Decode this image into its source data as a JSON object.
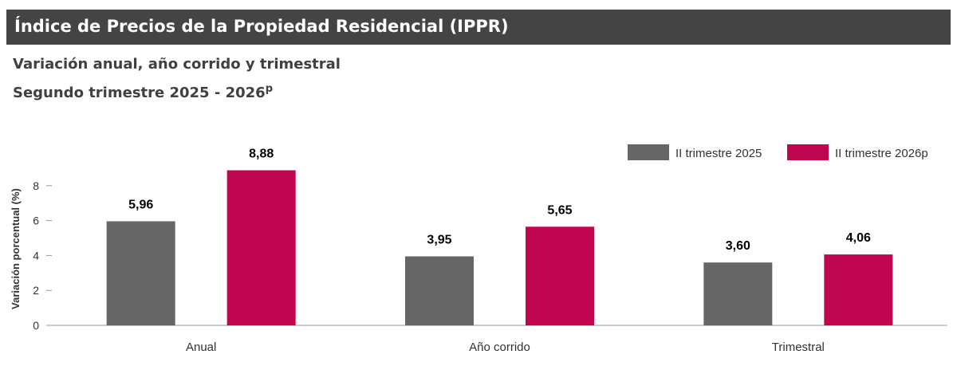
{
  "header": {
    "title": "Índice de Precios de la Propiedad Residencial (IPPR)"
  },
  "subtitle": {
    "line1": "Variación anual, año corrido y trimestral",
    "line2": "Segundo trimestre 2025 - 2026",
    "line2_sup": "p"
  },
  "chart_data": {
    "type": "bar",
    "categories": [
      "Anual",
      "Año corrido",
      "Trimestral"
    ],
    "series": [
      {
        "name": "II trimestre 2025",
        "values": [
          5.96,
          3.95,
          3.6
        ],
        "labels": [
          "5,96",
          "3,95",
          "3,60"
        ],
        "color": "#666666"
      },
      {
        "name": "II trimestre 2026p",
        "values": [
          8.88,
          5.65,
          4.06
        ],
        "labels": [
          "8,88",
          "5,65",
          "4,06"
        ],
        "color": "#c0064f"
      }
    ],
    "ylabel": "Variación porcentual (%)",
    "yticks": [
      "0",
      "2",
      "4",
      "6",
      "8"
    ],
    "ylim": [
      0,
      9
    ],
    "legend_position": "top-right",
    "grid": false
  }
}
